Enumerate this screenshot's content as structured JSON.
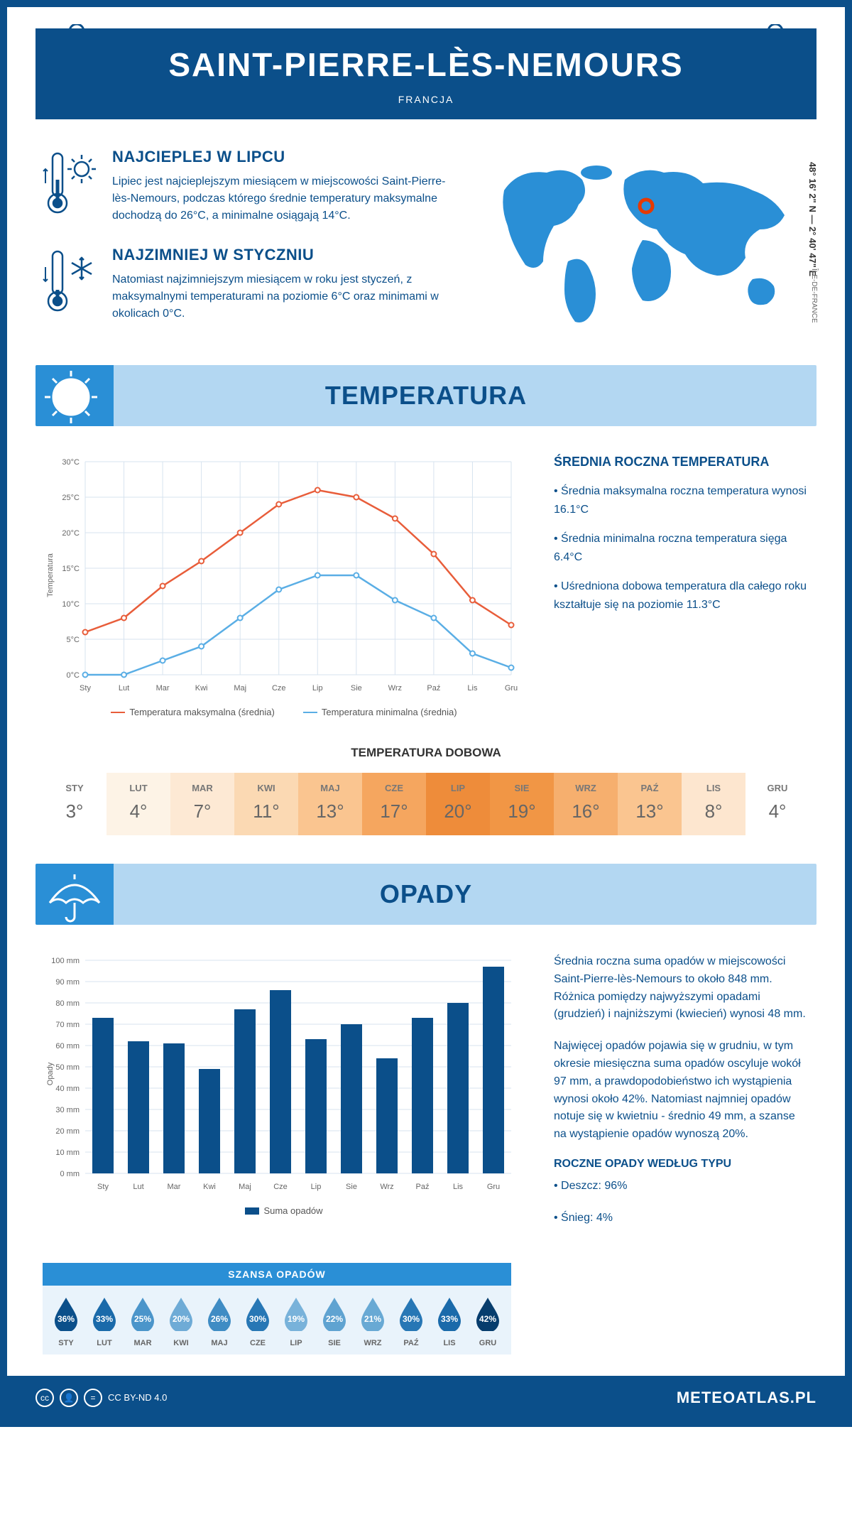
{
  "header": {
    "title": "SAINT-PIERRE-LÈS-NEMOURS",
    "country": "FRANCJA"
  },
  "coords": "48° 16' 2\" N — 2° 40' 47\" E",
  "region": "ÎLE-DE-FRANCE",
  "facts": {
    "hot": {
      "title": "NAJCIEPLEJ W LIPCU",
      "text": "Lipiec jest najcieplejszym miesiącem w miejscowości Saint-Pierre-lès-Nemours, podczas którego średnie temperatury maksymalne dochodzą do 26°C, a minimalne osiągają 14°C."
    },
    "cold": {
      "title": "NAJZIMNIEJ W STYCZNIU",
      "text": "Natomiast najzimniejszym miesiącem w roku jest styczeń, z maksymalnymi temperaturami na poziomie 6°C oraz minimami w okolicach 0°C."
    }
  },
  "temperature": {
    "section_title": "TEMPERATURA",
    "chart": {
      "type": "line",
      "months": [
        "Sty",
        "Lut",
        "Mar",
        "Kwi",
        "Maj",
        "Cze",
        "Lip",
        "Sie",
        "Wrz",
        "Paź",
        "Lis",
        "Gru"
      ],
      "y_label": "Temperatura",
      "y_ticks": [
        0,
        5,
        10,
        15,
        20,
        25,
        30
      ],
      "y_tick_labels": [
        "0°C",
        "5°C",
        "10°C",
        "15°C",
        "20°C",
        "25°C",
        "30°C"
      ],
      "series": [
        {
          "name": "Temperatura maksymalna (średnia)",
          "color": "#e85d3a",
          "values": [
            6,
            8,
            12.5,
            16,
            20,
            24,
            26,
            25,
            22,
            17,
            10.5,
            7
          ]
        },
        {
          "name": "Temperatura minimalna (średnia)",
          "color": "#5aaee5",
          "values": [
            0,
            0,
            2,
            4,
            8,
            12,
            14,
            14,
            10.5,
            8,
            3,
            1
          ]
        }
      ],
      "grid_color": "#d7e3ef",
      "background": "#ffffff"
    },
    "info": {
      "title": "ŚREDNIA ROCZNA TEMPERATURA",
      "bullets": [
        "• Średnia maksymalna roczna temperatura wynosi 16.1°C",
        "• Średnia minimalna roczna temperatura sięga 6.4°C",
        "• Uśredniona dobowa temperatura dla całego roku kształtuje się na poziomie 11.3°C"
      ]
    }
  },
  "daily_temp": {
    "title": "TEMPERATURA DOBOWA",
    "cells": [
      {
        "m": "STY",
        "v": "3°",
        "bg": "#ffffff"
      },
      {
        "m": "LUT",
        "v": "4°",
        "bg": "#fdf3e6"
      },
      {
        "m": "MAR",
        "v": "7°",
        "bg": "#fde9d4"
      },
      {
        "m": "KWI",
        "v": "11°",
        "bg": "#fbd9b3"
      },
      {
        "m": "MAJ",
        "v": "13°",
        "bg": "#fac590"
      },
      {
        "m": "CZE",
        "v": "17°",
        "bg": "#f5a65f"
      },
      {
        "m": "LIP",
        "v": "20°",
        "bg": "#ee8c3a"
      },
      {
        "m": "SIE",
        "v": "19°",
        "bg": "#f19645"
      },
      {
        "m": "WRZ",
        "v": "16°",
        "bg": "#f6af6e"
      },
      {
        "m": "PAŹ",
        "v": "13°",
        "bg": "#fac590"
      },
      {
        "m": "LIS",
        "v": "8°",
        "bg": "#fde6cf"
      },
      {
        "m": "GRU",
        "v": "4°",
        "bg": "#ffffff"
      }
    ]
  },
  "precipitation": {
    "section_title": "OPADY",
    "chart": {
      "type": "bar",
      "months": [
        "Sty",
        "Lut",
        "Mar",
        "Kwi",
        "Maj",
        "Cze",
        "Lip",
        "Sie",
        "Wrz",
        "Paź",
        "Lis",
        "Gru"
      ],
      "y_label": "Opady",
      "y_ticks": [
        0,
        10,
        20,
        30,
        40,
        50,
        60,
        70,
        80,
        90,
        100
      ],
      "y_tick_labels": [
        "0 mm",
        "10 mm",
        "20 mm",
        "30 mm",
        "40 mm",
        "50 mm",
        "60 mm",
        "70 mm",
        "80 mm",
        "90 mm",
        "100 mm"
      ],
      "values": [
        73,
        62,
        61,
        49,
        77,
        86,
        63,
        70,
        54,
        73,
        80,
        97
      ],
      "bar_color": "#0b4f8a",
      "grid_color": "#d7e3ef",
      "legend": "Suma opadów"
    },
    "info": {
      "p1": "Średnia roczna suma opadów w miejscowości Saint-Pierre-lès-Nemours to około 848 mm. Różnica pomiędzy najwyższymi opadami (grudzień) i najniższymi (kwiecień) wynosi 48 mm.",
      "p2": "Najwięcej opadów pojawia się w grudniu, w tym okresie miesięczna suma opadów oscyluje wokół 97 mm, a prawdopodobieństwo ich wystąpienia wynosi około 42%. Natomiast najmniej opadów notuje się w kwietniu - średnio 49 mm, a szanse na wystąpienie opadów wynoszą 20%.",
      "types_title": "ROCZNE OPADY WEDŁUG TYPU",
      "types": [
        "• Deszcz: 96%",
        "• Śnieg: 4%"
      ]
    },
    "chance": {
      "title": "SZANSA OPADÓW",
      "items": [
        {
          "m": "STY",
          "v": "36%",
          "color": "#0b4f8a"
        },
        {
          "m": "LUT",
          "v": "33%",
          "color": "#1a6aaa"
        },
        {
          "m": "MAR",
          "v": "25%",
          "color": "#4b95ca"
        },
        {
          "m": "KWI",
          "v": "20%",
          "color": "#6eabd6"
        },
        {
          "m": "MAJ",
          "v": "26%",
          "color": "#3f8cc4"
        },
        {
          "m": "CZE",
          "v": "30%",
          "color": "#2777b5"
        },
        {
          "m": "LIP",
          "v": "19%",
          "color": "#78b2da"
        },
        {
          "m": "SIE",
          "v": "22%",
          "color": "#5fa3d1"
        },
        {
          "m": "WRZ",
          "v": "21%",
          "color": "#68a9d4"
        },
        {
          "m": "PAŹ",
          "v": "30%",
          "color": "#2777b5"
        },
        {
          "m": "LIS",
          "v": "33%",
          "color": "#1a6aaa"
        },
        {
          "m": "GRU",
          "v": "42%",
          "color": "#073d6d"
        }
      ]
    }
  },
  "footer": {
    "license": "CC BY-ND 4.0",
    "brand": "METEOATLAS.PL"
  }
}
